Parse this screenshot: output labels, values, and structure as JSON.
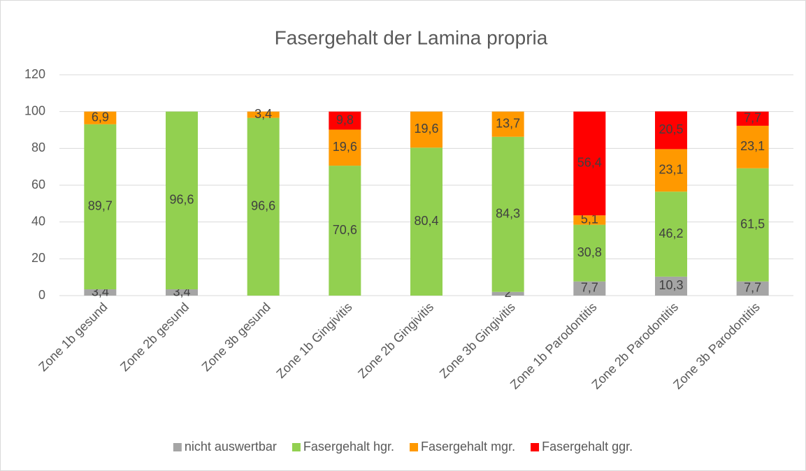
{
  "chart_data": {
    "type": "stacked_bar",
    "title": "Fasergehalt der Lamina propria",
    "categories": [
      "Zone 1b gesund",
      "Zone 2b gesund",
      "Zone 3b gesund",
      "Zone 1b Gingivitis",
      "Zone 2b Gingivitis",
      "Zone 3b Gingivitis",
      "Zone 1b Parodontitis",
      "Zone 2b Parodontitis",
      "Zone 3b Parodontitis"
    ],
    "series": [
      {
        "name": "nicht auswertbar",
        "color": "#a5a5a5",
        "values": [
          3.4,
          3.4,
          null,
          null,
          null,
          2,
          7.7,
          10.3,
          7.7
        ],
        "value_labels": [
          "3,4",
          "3,4",
          null,
          null,
          null,
          "2",
          "7,7",
          "10,3",
          "7,7"
        ]
      },
      {
        "name": "Fasergehalt hgr.",
        "color": "#92d050",
        "values": [
          89.7,
          96.6,
          96.6,
          70.6,
          80.4,
          84.3,
          30.8,
          46.2,
          61.5
        ],
        "value_labels": [
          "89,7",
          "96,6",
          "96,6",
          "70,6",
          "80,4",
          "84,3",
          "30,8",
          "46,2",
          "61,5"
        ]
      },
      {
        "name": "Fasergehalt mgr.",
        "color": "#ff9900",
        "values": [
          6.9,
          null,
          3.4,
          19.6,
          19.6,
          13.7,
          5.1,
          23.1,
          23.1
        ],
        "value_labels": [
          "6,9",
          null,
          "3,4",
          "19,6",
          "19,6",
          "13,7",
          "5,1",
          "23,1",
          "23,1"
        ]
      },
      {
        "name": "Fasergehalt ggr.",
        "color": "#ff0000",
        "values": [
          null,
          null,
          null,
          9.8,
          null,
          null,
          56.4,
          20.5,
          7.7
        ],
        "value_labels": [
          null,
          null,
          null,
          "9,8",
          null,
          null,
          "56,4",
          "20,5",
          "7,7"
        ]
      }
    ],
    "ylim": [
      0,
      120
    ],
    "yticks": [
      0,
      20,
      40,
      60,
      80,
      100,
      120
    ],
    "grid": true,
    "legend": "bottom"
  }
}
